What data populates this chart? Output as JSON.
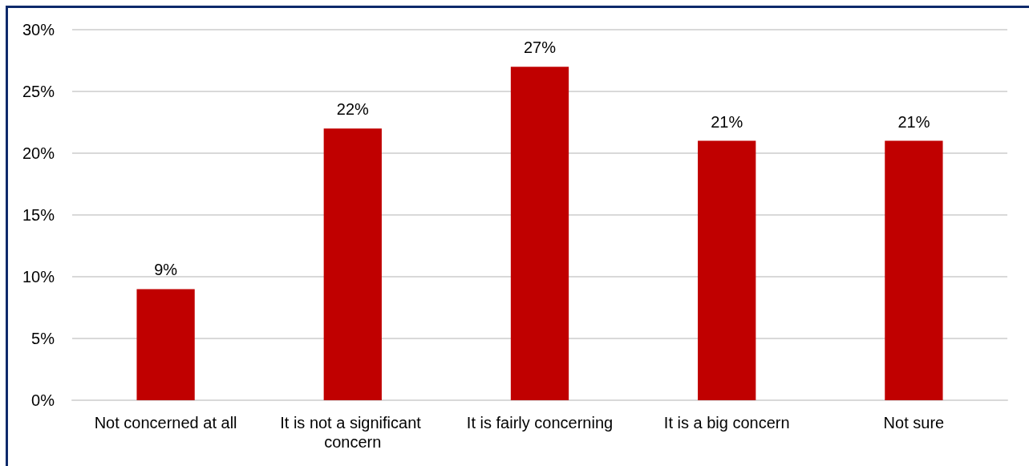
{
  "chart_data": {
    "type": "bar",
    "categories": [
      "Not concerned at all",
      "It is not a significant concern",
      "It is fairly concerning",
      "It is a big concern",
      "Not sure"
    ],
    "values": [
      9,
      22,
      27,
      21,
      21
    ],
    "color": "#c00000",
    "value_labels": [
      "9%",
      "22%",
      "27%",
      "21%",
      "21%"
    ],
    "ylim": [
      0,
      30
    ],
    "yticks": [
      {
        "value": 0,
        "label": "0%"
      },
      {
        "value": 5,
        "label": "5%"
      },
      {
        "value": 10,
        "label": "10%"
      },
      {
        "value": 15,
        "label": "15%"
      },
      {
        "value": 20,
        "label": "20%"
      },
      {
        "value": 25,
        "label": "25%"
      },
      {
        "value": 30,
        "label": "30%"
      }
    ],
    "grid": "y"
  }
}
